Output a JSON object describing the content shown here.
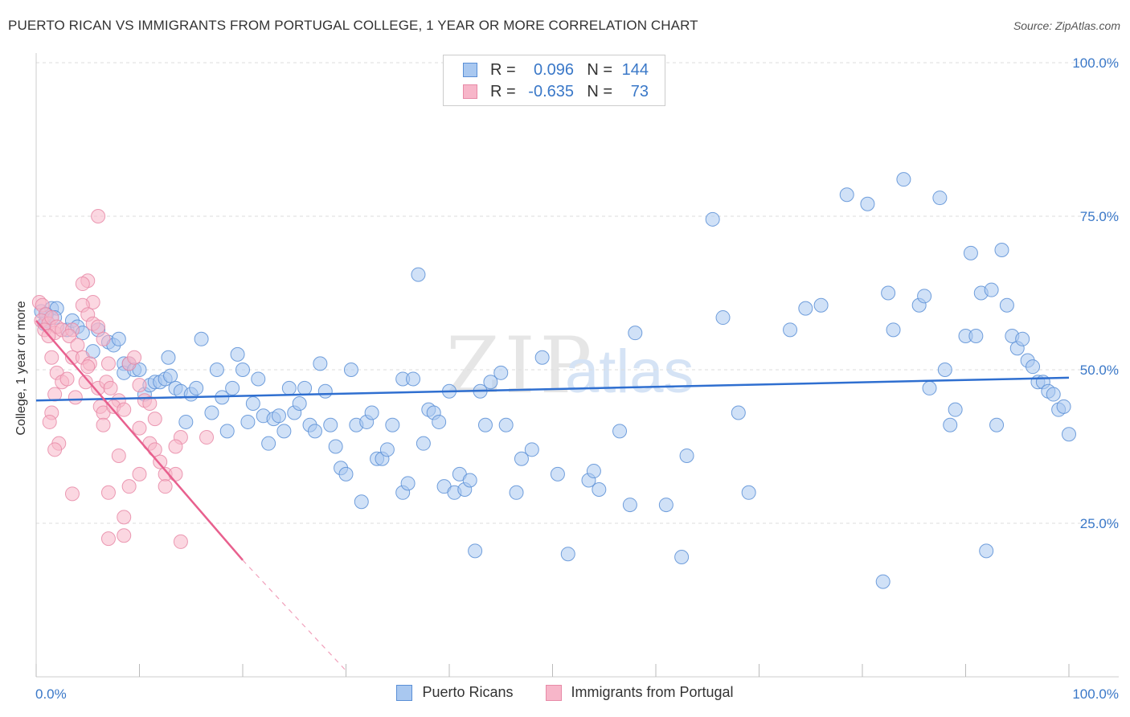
{
  "header": {
    "title": "PUERTO RICAN VS IMMIGRANTS FROM PORTUGAL COLLEGE, 1 YEAR OR MORE CORRELATION CHART",
    "source": "Source: ZipAtlas.com"
  },
  "watermark": {
    "part1": "ZIP",
    "part2": "atlas"
  },
  "legend": {
    "rows": [
      {
        "r_label": "R =",
        "r_value": "0.096",
        "n_label": "N =",
        "n_value": "144"
      },
      {
        "r_label": "R =",
        "r_value": "-0.635",
        "n_label": "N =",
        "n_value": "73"
      }
    ]
  },
  "bottom_legend": {
    "series1": "Puerto Ricans",
    "series2": "Immigrants from Portugal"
  },
  "colors": {
    "blue_fill": "#a9c8f0",
    "blue_stroke": "#5a8fd6",
    "blue_line": "#2f6fd0",
    "pink_fill": "#f7b6c9",
    "pink_stroke": "#e78aa7",
    "pink_line": "#e8608e",
    "grid": "#dddddd",
    "axis_text": "#3a78c8"
  },
  "chart_data": {
    "type": "scatter",
    "title": "PUERTO RICAN VS IMMIGRANTS FROM PORTUGAL COLLEGE, 1 YEAR OR MORE CORRELATION CHART",
    "xlabel": "",
    "ylabel": "College, 1 year or more",
    "xlim": [
      0,
      100
    ],
    "ylim": [
      0,
      100
    ],
    "x_tick_labels": [
      "0.0%",
      "100.0%"
    ],
    "y_ticks": [
      25,
      50,
      75,
      100
    ],
    "y_tick_labels": [
      "25.0%",
      "50.0%",
      "75.0%",
      "100.0%"
    ],
    "grid": true,
    "series": [
      {
        "name": "Puerto Ricans",
        "r": 0.096,
        "n": 144,
        "trend": {
          "x0": 0,
          "y0": 45.0,
          "x1": 100,
          "y1": 48.7
        },
        "points": [
          [
            0.5,
            59.5
          ],
          [
            1.0,
            58.0
          ],
          [
            1.5,
            60.0
          ],
          [
            2.0,
            60.0
          ],
          [
            1.0,
            59.0
          ],
          [
            0.8,
            57.5
          ],
          [
            1.8,
            58.5
          ],
          [
            3.0,
            56.5
          ],
          [
            3.5,
            58.0
          ],
          [
            4.0,
            57.0
          ],
          [
            4.5,
            56.0
          ],
          [
            5.5,
            53.0
          ],
          [
            6.0,
            56.5
          ],
          [
            7.0,
            54.5
          ],
          [
            7.5,
            54.0
          ],
          [
            8.0,
            55.0
          ],
          [
            8.5,
            51.0
          ],
          [
            8.5,
            49.5
          ],
          [
            9.0,
            51.0
          ],
          [
            9.5,
            50.0
          ],
          [
            10.0,
            50.0
          ],
          [
            10.5,
            46.0
          ],
          [
            11.0,
            47.5
          ],
          [
            11.5,
            48.0
          ],
          [
            12.0,
            48.0
          ],
          [
            12.5,
            48.5
          ],
          [
            13.0,
            49.0
          ],
          [
            12.8,
            52.0
          ],
          [
            13.5,
            47.0
          ],
          [
            14.5,
            41.5
          ],
          [
            14.0,
            46.5
          ],
          [
            15.0,
            46.0
          ],
          [
            15.5,
            47.0
          ],
          [
            16.0,
            55.0
          ],
          [
            17.0,
            43.0
          ],
          [
            17.5,
            50.0
          ],
          [
            18.0,
            45.5
          ],
          [
            18.5,
            40.0
          ],
          [
            19.0,
            47.0
          ],
          [
            19.5,
            52.5
          ],
          [
            20.0,
            50.0
          ],
          [
            20.5,
            41.5
          ],
          [
            21.0,
            44.5
          ],
          [
            21.5,
            48.5
          ],
          [
            22.0,
            42.5
          ],
          [
            22.5,
            38.0
          ],
          [
            23.0,
            42.0
          ],
          [
            23.5,
            42.5
          ],
          [
            24.0,
            40.0
          ],
          [
            24.5,
            47.0
          ],
          [
            25.0,
            43.0
          ],
          [
            25.5,
            44.5
          ],
          [
            26.0,
            47.0
          ],
          [
            26.5,
            41.0
          ],
          [
            27.0,
            40.0
          ],
          [
            27.5,
            51.0
          ],
          [
            28.0,
            46.5
          ],
          [
            28.5,
            41.0
          ],
          [
            29.0,
            37.5
          ],
          [
            29.5,
            34.0
          ],
          [
            30.0,
            33.0
          ],
          [
            30.5,
            50.0
          ],
          [
            31.0,
            41.0
          ],
          [
            31.5,
            28.5
          ],
          [
            32.0,
            41.5
          ],
          [
            32.5,
            43.0
          ],
          [
            33.0,
            35.5
          ],
          [
            33.5,
            35.5
          ],
          [
            34.0,
            37.0
          ],
          [
            34.5,
            41.0
          ],
          [
            35.5,
            48.5
          ],
          [
            35.5,
            30.0
          ],
          [
            36.0,
            31.5
          ],
          [
            36.5,
            48.5
          ],
          [
            37.0,
            65.5
          ],
          [
            37.5,
            38.0
          ],
          [
            38.0,
            43.5
          ],
          [
            38.5,
            43.0
          ],
          [
            39.0,
            41.5
          ],
          [
            39.5,
            31.0
          ],
          [
            40.0,
            46.5
          ],
          [
            40.5,
            30.0
          ],
          [
            41.0,
            33.0
          ],
          [
            41.5,
            30.5
          ],
          [
            42.0,
            32.0
          ],
          [
            42.5,
            20.5
          ],
          [
            43.0,
            46.5
          ],
          [
            43.5,
            41.0
          ],
          [
            44.0,
            48.0
          ],
          [
            45.0,
            49.5
          ],
          [
            45.5,
            41.0
          ],
          [
            46.5,
            30.0
          ],
          [
            47.0,
            35.5
          ],
          [
            48.0,
            37.0
          ],
          [
            49.0,
            52.0
          ],
          [
            50.5,
            33.0
          ],
          [
            51.5,
            20.0
          ],
          [
            53.5,
            32.0
          ],
          [
            54.0,
            33.5
          ],
          [
            54.5,
            30.5
          ],
          [
            56.5,
            40.0
          ],
          [
            57.5,
            28.0
          ],
          [
            58.0,
            56.0
          ],
          [
            61.0,
            28.0
          ],
          [
            62.5,
            19.5
          ],
          [
            63.0,
            36.0
          ],
          [
            65.5,
            74.5
          ],
          [
            66.5,
            58.5
          ],
          [
            68.0,
            43.0
          ],
          [
            69.0,
            30.0
          ],
          [
            73.0,
            56.5
          ],
          [
            74.5,
            60.0
          ],
          [
            76.0,
            60.5
          ],
          [
            78.5,
            78.5
          ],
          [
            80.5,
            77.0
          ],
          [
            82.0,
            15.5
          ],
          [
            82.5,
            62.5
          ],
          [
            83.0,
            56.5
          ],
          [
            84.0,
            81.0
          ],
          [
            85.5,
            60.5
          ],
          [
            86.0,
            62.0
          ],
          [
            86.5,
            47.0
          ],
          [
            87.5,
            78.0
          ],
          [
            88.0,
            50.0
          ],
          [
            88.5,
            41.0
          ],
          [
            89.0,
            43.5
          ],
          [
            90.0,
            55.5
          ],
          [
            90.5,
            69.0
          ],
          [
            91.0,
            55.5
          ],
          [
            91.5,
            62.5
          ],
          [
            92.0,
            20.5
          ],
          [
            92.5,
            63.0
          ],
          [
            93.0,
            41.0
          ],
          [
            93.5,
            69.5
          ],
          [
            94.0,
            60.5
          ],
          [
            94.5,
            55.5
          ],
          [
            95.0,
            53.5
          ],
          [
            95.5,
            55.0
          ],
          [
            96.0,
            51.5
          ],
          [
            96.5,
            50.5
          ],
          [
            97.0,
            48.0
          ],
          [
            97.5,
            48.0
          ],
          [
            98.0,
            46.5
          ],
          [
            98.5,
            46.0
          ],
          [
            99.0,
            43.5
          ],
          [
            99.5,
            44.0
          ],
          [
            100.0,
            39.5
          ]
        ]
      },
      {
        "name": "Immigrants from Portugal",
        "r": -0.635,
        "n": 73,
        "trend": {
          "x0": 0,
          "y0": 58.0,
          "x1": 20,
          "y1": 19.0
        },
        "trend_dashed": {
          "x0": 20,
          "y0": 19.0,
          "x1": 30,
          "y1": 1.0
        },
        "points": [
          [
            0.3,
            61.0
          ],
          [
            0.6,
            60.5
          ],
          [
            0.9,
            59.0
          ],
          [
            0.5,
            58.0
          ],
          [
            1.2,
            57.5
          ],
          [
            1.5,
            58.5
          ],
          [
            0.8,
            56.5
          ],
          [
            1.8,
            56.0
          ],
          [
            2.0,
            57.0
          ],
          [
            2.5,
            56.5
          ],
          [
            1.2,
            55.5
          ],
          [
            1.5,
            52.0
          ],
          [
            2.0,
            49.5
          ],
          [
            2.5,
            48.0
          ],
          [
            1.8,
            46.0
          ],
          [
            1.5,
            43.0
          ],
          [
            1.3,
            41.5
          ],
          [
            2.2,
            38.0
          ],
          [
            1.8,
            37.0
          ],
          [
            3.5,
            56.5
          ],
          [
            3.2,
            55.5
          ],
          [
            4.0,
            54.0
          ],
          [
            3.5,
            52.0
          ],
          [
            4.5,
            52.0
          ],
          [
            3.0,
            48.5
          ],
          [
            3.8,
            45.5
          ],
          [
            5.0,
            64.5
          ],
          [
            4.5,
            64.0
          ],
          [
            5.5,
            61.0
          ],
          [
            4.5,
            60.5
          ],
          [
            5.0,
            59.0
          ],
          [
            5.5,
            57.5
          ],
          [
            6.0,
            57.0
          ],
          [
            6.5,
            55.0
          ],
          [
            5.2,
            51.0
          ],
          [
            5.0,
            50.5
          ],
          [
            4.8,
            48.0
          ],
          [
            6.0,
            47.0
          ],
          [
            6.2,
            44.0
          ],
          [
            6.5,
            43.0
          ],
          [
            6.5,
            41.0
          ],
          [
            7.0,
            51.0
          ],
          [
            6.8,
            48.0
          ],
          [
            7.2,
            47.0
          ],
          [
            8.0,
            45.0
          ],
          [
            7.5,
            44.0
          ],
          [
            8.5,
            43.5
          ],
          [
            7.0,
            30.0
          ],
          [
            3.5,
            29.8
          ],
          [
            6.0,
            75.0
          ],
          [
            9.0,
            51.0
          ],
          [
            9.5,
            52.0
          ],
          [
            10.0,
            47.5
          ],
          [
            10.5,
            45.0
          ],
          [
            11.0,
            44.5
          ],
          [
            10.0,
            40.5
          ],
          [
            11.5,
            42.0
          ],
          [
            11.0,
            38.0
          ],
          [
            11.5,
            37.0
          ],
          [
            12.0,
            35.0
          ],
          [
            12.5,
            33.0
          ],
          [
            12.5,
            31.0
          ],
          [
            13.5,
            33.0
          ],
          [
            14.0,
            39.0
          ],
          [
            13.5,
            37.5
          ],
          [
            8.0,
            36.0
          ],
          [
            9.0,
            31.0
          ],
          [
            10.0,
            33.0
          ],
          [
            8.5,
            26.0
          ],
          [
            8.5,
            23.0
          ],
          [
            7.0,
            22.5
          ],
          [
            14.0,
            22.0
          ],
          [
            16.5,
            39.0
          ]
        ]
      }
    ]
  }
}
